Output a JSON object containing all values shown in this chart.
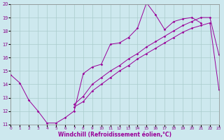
{
  "xlabel": "Windchill (Refroidissement éolien,°C)",
  "xlim": [
    0,
    23
  ],
  "ylim": [
    11,
    20
  ],
  "xticks": [
    0,
    1,
    2,
    3,
    4,
    5,
    6,
    7,
    8,
    9,
    10,
    11,
    12,
    13,
    14,
    15,
    16,
    17,
    18,
    19,
    20,
    21,
    22,
    23
  ],
  "yticks": [
    11,
    12,
    13,
    14,
    15,
    16,
    17,
    18,
    19,
    20
  ],
  "bg_color": "#cde8ee",
  "grid_color": "#aacccc",
  "line_color": "#990099",
  "line1_x": [
    0,
    1,
    2,
    3,
    4,
    5,
    6,
    7,
    8,
    9,
    10,
    11,
    12,
    13,
    14,
    15,
    16,
    17,
    18,
    19,
    20,
    21
  ],
  "line1_y": [
    14.7,
    14.1,
    12.8,
    12.0,
    11.1,
    11.1,
    11.5,
    12.0,
    14.8,
    15.3,
    15.5,
    17.0,
    17.1,
    17.5,
    18.2,
    20.1,
    19.2,
    18.1,
    18.7,
    18.9,
    19.0,
    18.6
  ],
  "line2_x": [
    7,
    8,
    9,
    10,
    11,
    12,
    13,
    14,
    15,
    16,
    17,
    18,
    19,
    20,
    21,
    22,
    23
  ],
  "line2_y": [
    12.3,
    12.7,
    13.5,
    14.0,
    14.5,
    15.0,
    15.4,
    15.9,
    16.3,
    16.7,
    17.1,
    17.5,
    17.9,
    18.2,
    18.4,
    18.6,
    13.6
  ],
  "line3_x": [
    7,
    8,
    9,
    10,
    11,
    12,
    13,
    14,
    15,
    16,
    17,
    18,
    19,
    20,
    21,
    22,
    23
  ],
  "line3_y": [
    12.5,
    13.1,
    14.0,
    14.5,
    15.0,
    15.4,
    15.9,
    16.3,
    16.8,
    17.2,
    17.6,
    18.0,
    18.4,
    18.7,
    19.0,
    19.0,
    16.2
  ]
}
